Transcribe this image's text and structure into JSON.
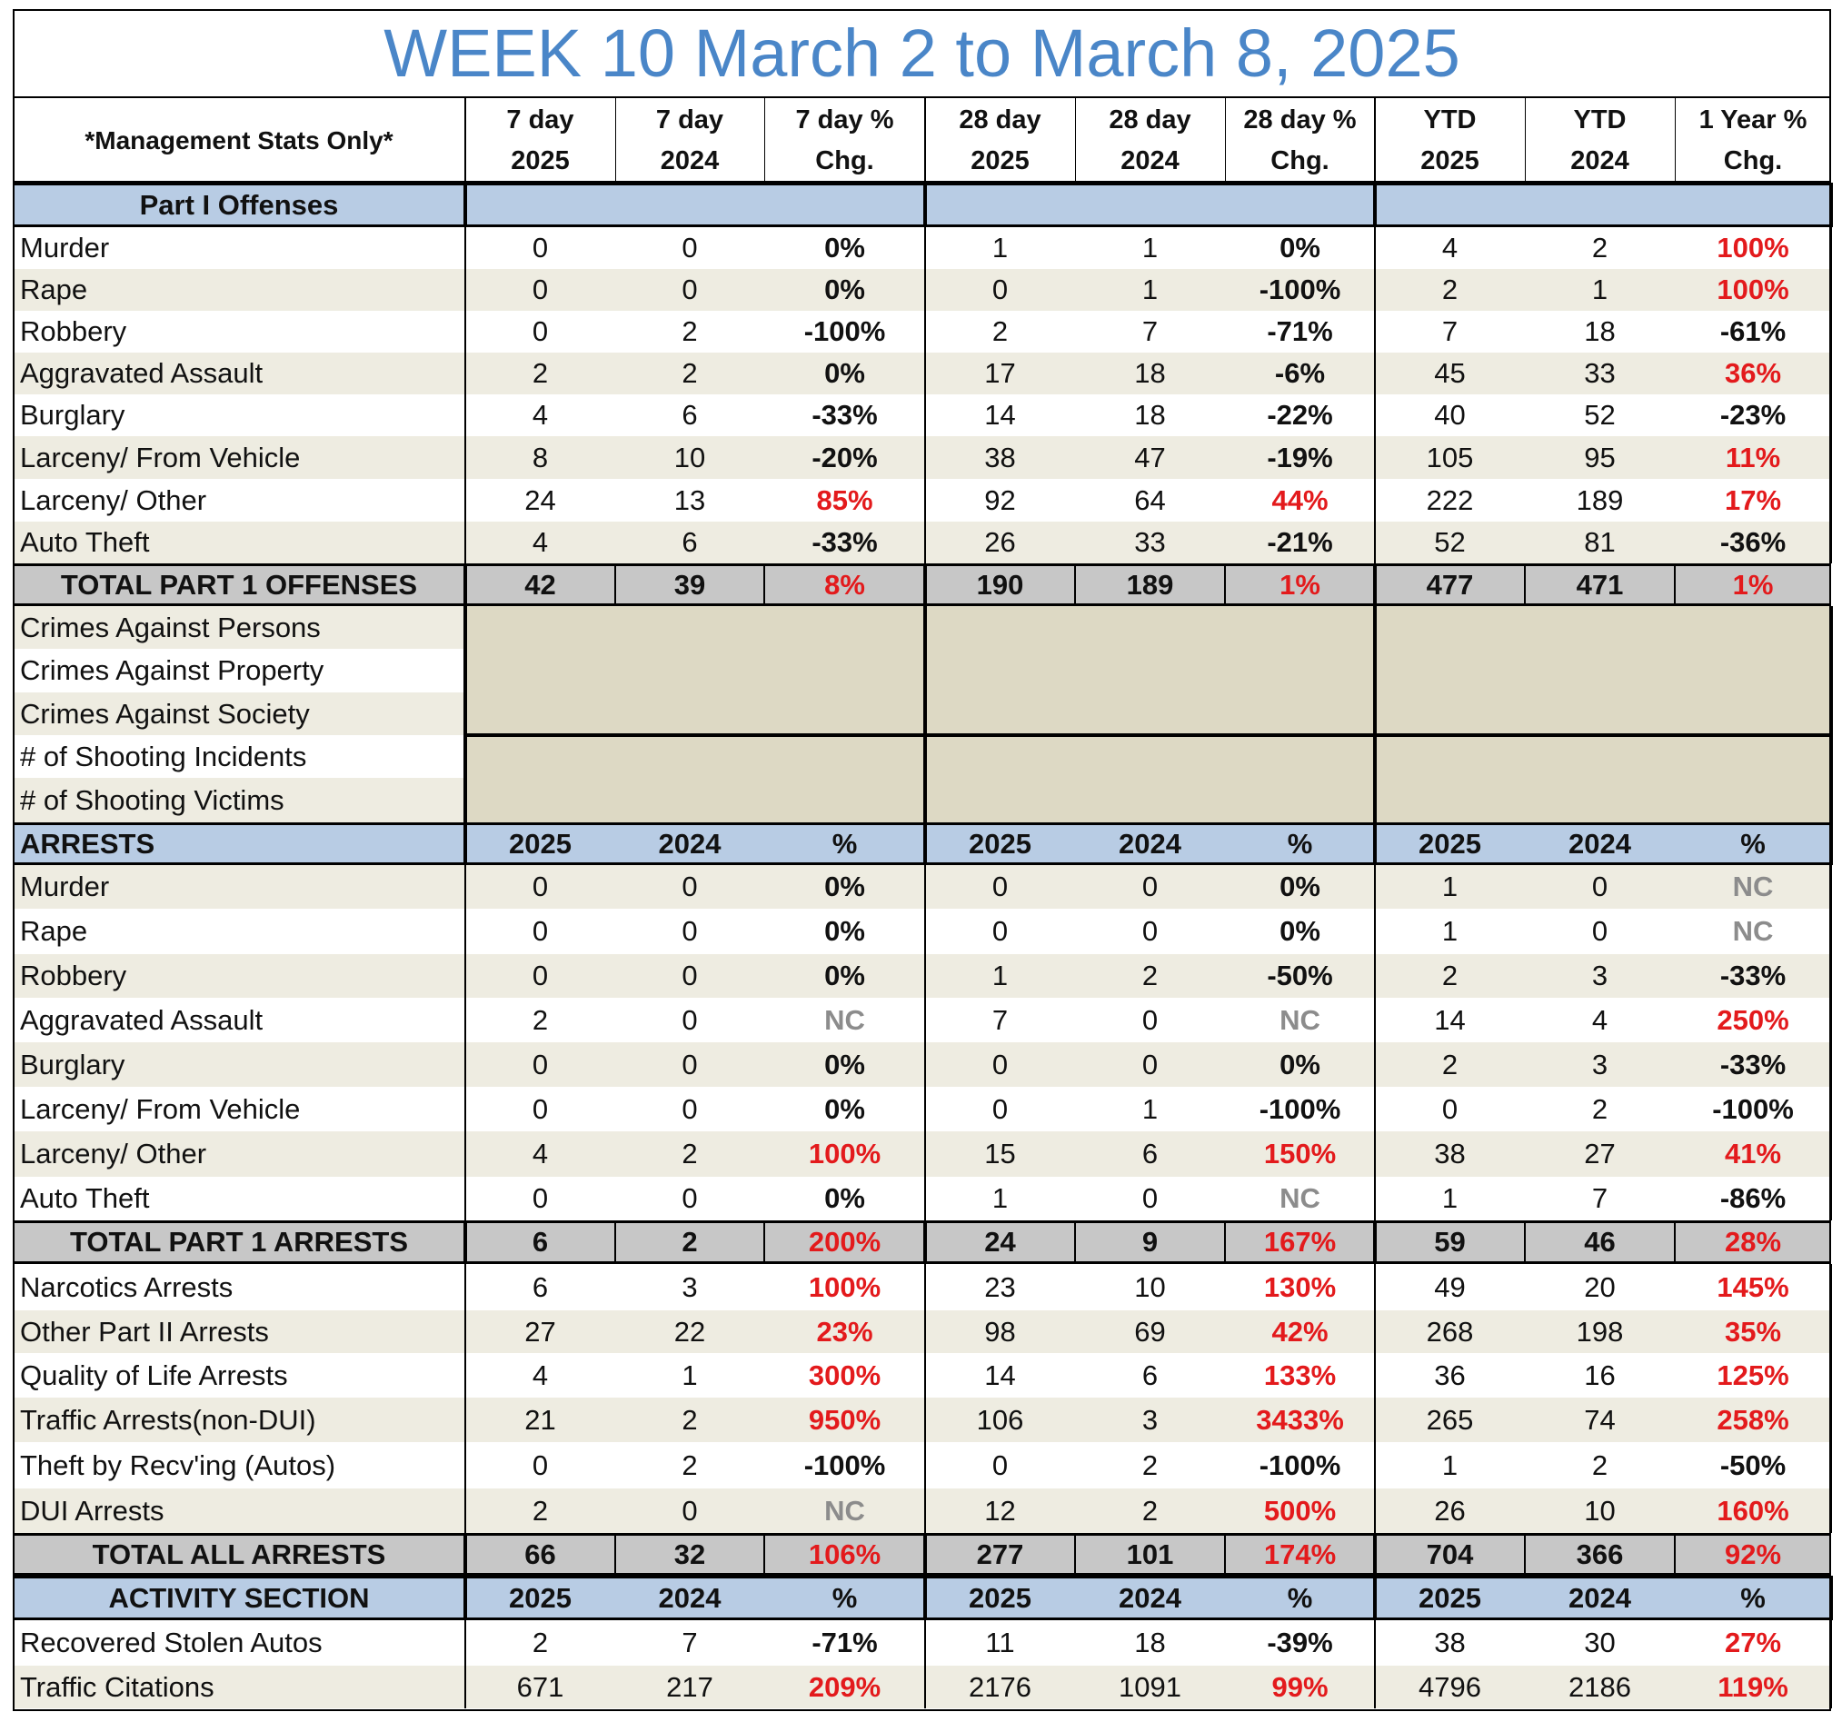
{
  "title": "WEEK 10 March 2 to March 8, 2025",
  "header": {
    "label": "*Management Stats Only*",
    "columns": [
      [
        "7 day",
        "2025"
      ],
      [
        "7 day",
        "2024"
      ],
      [
        "7 day %",
        "Chg."
      ],
      [
        "28 day",
        "2025"
      ],
      [
        "28 day",
        "2024"
      ],
      [
        "28 day %",
        "Chg."
      ],
      [
        "YTD",
        "2025"
      ],
      [
        "YTD",
        "2024"
      ],
      [
        "1 Year %",
        "Chg."
      ]
    ]
  },
  "colors": {
    "title": "#4a86c8",
    "section_blue": "#b8cce4",
    "total_gray": "#c7c7c7",
    "stripe": "#eeece1",
    "empty_block": "#ddd9c4",
    "increase_red": "#e31a1c",
    "nc_gray": "#8c8c8c"
  },
  "sections": [
    {
      "type": "section",
      "label": "Part I Offenses",
      "cols": []
    },
    {
      "type": "data",
      "label": "Murder",
      "values": [
        "0",
        "0",
        "0%",
        "1",
        "1",
        "0%",
        "4",
        "2",
        "100%"
      ]
    },
    {
      "type": "data",
      "label": "Rape",
      "values": [
        "0",
        "0",
        "0%",
        "0",
        "1",
        "-100%",
        "2",
        "1",
        "100%"
      ]
    },
    {
      "type": "data",
      "label": "Robbery",
      "values": [
        "0",
        "2",
        "-100%",
        "2",
        "7",
        "-71%",
        "7",
        "18",
        "-61%"
      ]
    },
    {
      "type": "data",
      "label": "Aggravated Assault",
      "values": [
        "2",
        "2",
        "0%",
        "17",
        "18",
        "-6%",
        "45",
        "33",
        "36%"
      ]
    },
    {
      "type": "data",
      "label": "Burglary",
      "values": [
        "4",
        "6",
        "-33%",
        "14",
        "18",
        "-22%",
        "40",
        "52",
        "-23%"
      ]
    },
    {
      "type": "data",
      "label": "Larceny/ From Vehicle",
      "values": [
        "8",
        "10",
        "-20%",
        "38",
        "47",
        "-19%",
        "105",
        "95",
        "11%"
      ]
    },
    {
      "type": "data",
      "label": "Larceny/ Other",
      "values": [
        "24",
        "13",
        "85%",
        "92",
        "64",
        "44%",
        "222",
        "189",
        "17%"
      ]
    },
    {
      "type": "data",
      "label": "Auto Theft",
      "values": [
        "4",
        "6",
        "-33%",
        "26",
        "33",
        "-21%",
        "52",
        "81",
        "-36%"
      ]
    },
    {
      "type": "total",
      "label": "TOTAL PART 1 OFFENSES",
      "values": [
        "42",
        "39",
        "8%",
        "190",
        "189",
        "1%",
        "477",
        "471",
        "1%"
      ]
    },
    {
      "type": "empty",
      "label": "Crimes Against Persons"
    },
    {
      "type": "empty",
      "label": "Crimes Against Property"
    },
    {
      "type": "empty",
      "label": "Crimes Against Society"
    },
    {
      "type": "empty",
      "label": "# of Shooting Incidents"
    },
    {
      "type": "empty",
      "label": "# of Shooting Victims"
    },
    {
      "type": "section",
      "label": "ARRESTS",
      "cols": [
        "2025",
        "2024",
        "%",
        "2025",
        "2024",
        "%",
        "2025",
        "2024",
        "%"
      ]
    },
    {
      "type": "data",
      "label": "Murder",
      "values": [
        "0",
        "0",
        "0%",
        "0",
        "0",
        "0%",
        "1",
        "0",
        "NC"
      ]
    },
    {
      "type": "data",
      "label": "Rape",
      "values": [
        "0",
        "0",
        "0%",
        "0",
        "0",
        "0%",
        "1",
        "0",
        "NC"
      ]
    },
    {
      "type": "data",
      "label": "Robbery",
      "values": [
        "0",
        "0",
        "0%",
        "1",
        "2",
        "-50%",
        "2",
        "3",
        "-33%"
      ]
    },
    {
      "type": "data",
      "label": "Aggravated Assault",
      "values": [
        "2",
        "0",
        "NC",
        "7",
        "0",
        "NC",
        "14",
        "4",
        "250%"
      ]
    },
    {
      "type": "data",
      "label": "Burglary",
      "values": [
        "0",
        "0",
        "0%",
        "0",
        "0",
        "0%",
        "2",
        "3",
        "-33%"
      ]
    },
    {
      "type": "data",
      "label": "Larceny/ From Vehicle",
      "values": [
        "0",
        "0",
        "0%",
        "0",
        "1",
        "-100%",
        "0",
        "2",
        "-100%"
      ]
    },
    {
      "type": "data",
      "label": "Larceny/ Other",
      "values": [
        "4",
        "2",
        "100%",
        "15",
        "6",
        "150%",
        "38",
        "27",
        "41%"
      ]
    },
    {
      "type": "data",
      "label": "Auto Theft",
      "values": [
        "0",
        "0",
        "0%",
        "1",
        "0",
        "NC",
        "1",
        "7",
        "-86%"
      ]
    },
    {
      "type": "total",
      "label": "TOTAL PART 1 ARRESTS",
      "values": [
        "6",
        "2",
        "200%",
        "24",
        "9",
        "167%",
        "59",
        "46",
        "28%"
      ]
    },
    {
      "type": "data",
      "label": "Narcotics Arrests",
      "values": [
        "6",
        "3",
        "100%",
        "23",
        "10",
        "130%",
        "49",
        "20",
        "145%"
      ]
    },
    {
      "type": "data",
      "label": "Other Part II Arrests",
      "values": [
        "27",
        "22",
        "23%",
        "98",
        "69",
        "42%",
        "268",
        "198",
        "35%"
      ]
    },
    {
      "type": "data",
      "label": "Quality of Life Arrests",
      "values": [
        "4",
        "1",
        "300%",
        "14",
        "6",
        "133%",
        "36",
        "16",
        "125%"
      ]
    },
    {
      "type": "data",
      "label": "Traffic Arrests(non-DUI)",
      "values": [
        "21",
        "2",
        "950%",
        "106",
        "3",
        "3433%",
        "265",
        "74",
        "258%"
      ]
    },
    {
      "type": "data",
      "label": "Theft by Recv'ing (Autos)",
      "values": [
        "0",
        "2",
        "-100%",
        "0",
        "2",
        "-100%",
        "1",
        "2",
        "-50%"
      ]
    },
    {
      "type": "data",
      "label": "DUI Arrests",
      "values": [
        "2",
        "0",
        "NC",
        "12",
        "2",
        "500%",
        "26",
        "10",
        "160%"
      ]
    },
    {
      "type": "total",
      "label": "TOTAL ALL ARRESTS",
      "values": [
        "66",
        "32",
        "106%",
        "277",
        "101",
        "174%",
        "704",
        "366",
        "92%"
      ]
    },
    {
      "type": "section",
      "label": "ACTIVITY SECTION",
      "cols": [
        "2025",
        "2024",
        "%",
        "2025",
        "2024",
        "%",
        "2025",
        "2024",
        "%"
      ]
    },
    {
      "type": "data",
      "label": "Recovered Stolen Autos",
      "values": [
        "2",
        "7",
        "-71%",
        "11",
        "18",
        "-39%",
        "38",
        "30",
        "27%"
      ]
    },
    {
      "type": "data",
      "label": "Traffic Citations",
      "values": [
        "671",
        "217",
        "209%",
        "2176",
        "1091",
        "99%",
        "4796",
        "2186",
        "119%"
      ]
    }
  ]
}
